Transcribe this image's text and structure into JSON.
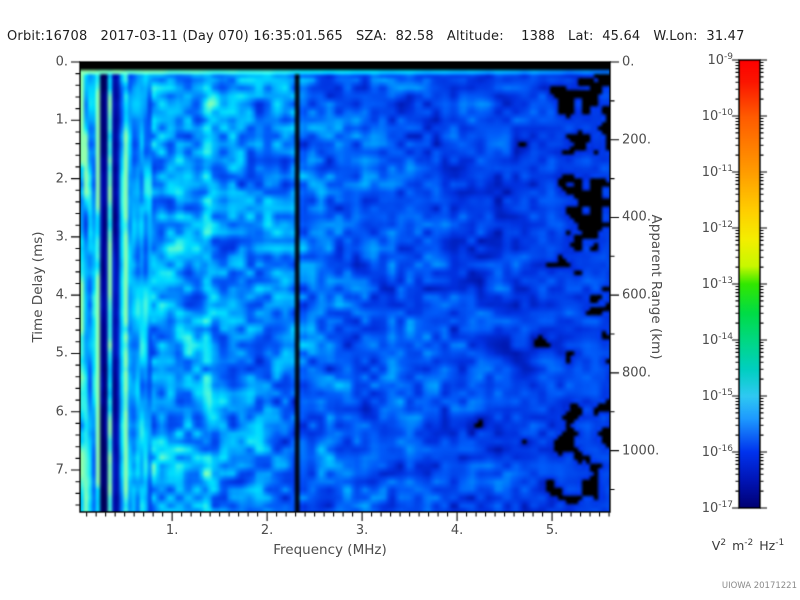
{
  "header": {
    "text": "Orbit:16708   2017-03-11 (Day 070) 16:35:01.565   SZA:  82.58   Altitude:    1388   Lat:  45.64   W.Lon:  31.47"
  },
  "footer": {
    "stamp": "UIOWA 20171221"
  },
  "chart_data": {
    "type": "heatmap",
    "description": "Radar-sounder ionogram spectrogram: received spectral density versus sounding frequency and echo time delay",
    "observation": {
      "orbit": "16708",
      "date": "2017-03-11",
      "day_of_year": "070",
      "time": "16:35:01.565",
      "sza": "82.58",
      "altitude_km": "1388",
      "lat": "45.64",
      "w_lon": "31.47"
    },
    "x_axis": {
      "label": "Frequency (MHz)",
      "min": 0.03,
      "max": 5.61,
      "major_ticks": [
        1,
        2,
        3,
        4,
        5
      ],
      "major_labels": [
        "1.",
        "2.",
        "3.",
        "4.",
        "5."
      ],
      "minor_step": 0.1
    },
    "y_axis": {
      "label": "Time Delay (ms)",
      "min": 0,
      "max": 7.72,
      "major_ticks": [
        0,
        1,
        2,
        3,
        4,
        5,
        6,
        7
      ],
      "major_labels": [
        "0.",
        "1.",
        "2.",
        "3.",
        "4.",
        "5.",
        "6.",
        "7."
      ],
      "minor_step": 0.2
    },
    "y2_axis": {
      "label": "Apparent Range (km)",
      "km_per_ms": 150,
      "major_ticks": [
        0,
        200,
        400,
        600,
        800,
        1000
      ],
      "major_labels": [
        "0.",
        "200.",
        "400.",
        "600.",
        "800.",
        "1000."
      ],
      "minor_step": 100
    },
    "colorbar": {
      "scale": "log",
      "top_exponent": -9,
      "bottom_exponent": -17,
      "tick_exponents": [
        -9,
        -10,
        -11,
        -12,
        -13,
        -14,
        -15,
        -16,
        -17
      ],
      "unit_parts": [
        [
          "V",
          "2"
        ],
        [
          "m",
          "-2"
        ],
        [
          "Hz",
          "-1"
        ]
      ],
      "gradient": [
        [
          0.0,
          "#ff0000"
        ],
        [
          0.05,
          "#fb1600"
        ],
        [
          0.125,
          "#ff5a00"
        ],
        [
          0.25,
          "#ff9c00"
        ],
        [
          0.34,
          "#ffd000"
        ],
        [
          0.4,
          "#f4ee00"
        ],
        [
          0.46,
          "#c8f800"
        ],
        [
          0.5,
          "#32e800"
        ],
        [
          0.565,
          "#00dc46"
        ],
        [
          0.625,
          "#00d882"
        ],
        [
          0.69,
          "#00cfc0"
        ],
        [
          0.75,
          "#2fc9f2"
        ],
        [
          0.8,
          "#1e9bff"
        ],
        [
          0.875,
          "#0033ee"
        ],
        [
          0.94,
          "#0014b4"
        ],
        [
          1.0,
          "#000072"
        ]
      ]
    },
    "spectrogram": {
      "seed": 42,
      "grid": {
        "w": 133,
        "h": 112
      },
      "freq_min": 0.03,
      "freq_max": 5.61,
      "time_max": 7.72,
      "brightness_profile": [
        [
          0.03,
          0.66
        ],
        [
          0.25,
          0.62
        ],
        [
          0.8,
          0.6
        ],
        [
          1.5,
          0.55
        ],
        [
          2.2,
          0.5
        ],
        [
          2.45,
          0.46
        ],
        [
          3.2,
          0.42
        ],
        [
          4.0,
          0.37
        ],
        [
          4.8,
          0.33
        ],
        [
          5.61,
          0.3
        ]
      ],
      "stripes_region_end": 0.78,
      "bright_stripes": [
        {
          "f": 0.06,
          "w": 0.025,
          "boost": 1.5
        },
        {
          "f": 0.22,
          "w": 0.02,
          "boost": 1.7
        },
        {
          "f": 0.35,
          "w": 0.012,
          "boost": 1.6
        },
        {
          "f": 0.51,
          "w": 0.018,
          "boost": 1.6
        },
        {
          "f": 1.38,
          "w": 0.05,
          "boost": 1.25
        }
      ],
      "dark_ranges": [
        [
          0.26,
          0.335,
          0.22
        ],
        [
          0.365,
          0.45,
          0.3
        ]
      ],
      "black_line": {
        "f": 2.315,
        "half_width": 0.03
      },
      "top_black_end_ms": 0.145,
      "bright_row_end_ms": 0.215,
      "bright_row_left": 1.0,
      "bright_row_right": 0.5,
      "right_black_start": 4.25,
      "right_black_max": 0.5,
      "speckle_thresholds": [
        [
          0.8,
          0.02
        ],
        [
          2.4,
          0.045
        ],
        [
          5.61,
          0.1
        ]
      ],
      "colormap": [
        [
          0.0,
          "#000000"
        ],
        [
          0.06,
          "#000030"
        ],
        [
          0.16,
          "#000e9c"
        ],
        [
          0.3,
          "#0031e0"
        ],
        [
          0.45,
          "#005cfa"
        ],
        [
          0.6,
          "#00a2ff"
        ],
        [
          0.74,
          "#00dcff"
        ],
        [
          0.87,
          "#45f5e0"
        ],
        [
          1.0,
          "#90ffae"
        ]
      ]
    }
  }
}
